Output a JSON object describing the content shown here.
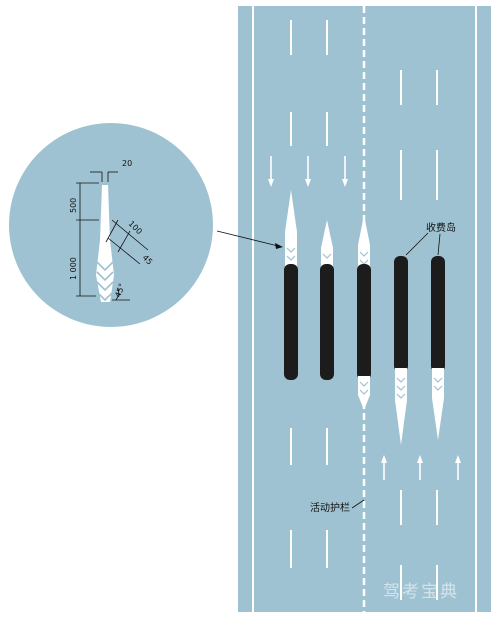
{
  "labels": {
    "toll_island": "收费岛",
    "movable_barrier": "活动护栏"
  },
  "dimensions": {
    "top_width": "20",
    "upper_length": "500",
    "lower_length": "1 000",
    "hatch_spacing": "100",
    "hatch_width": "45",
    "angle": "45°"
  },
  "watermark": "驾考宝典",
  "colors": {
    "road": "#9fc2d2",
    "marking": "#ffffff",
    "island": "#1c1c1c",
    "ink": "#111111"
  }
}
